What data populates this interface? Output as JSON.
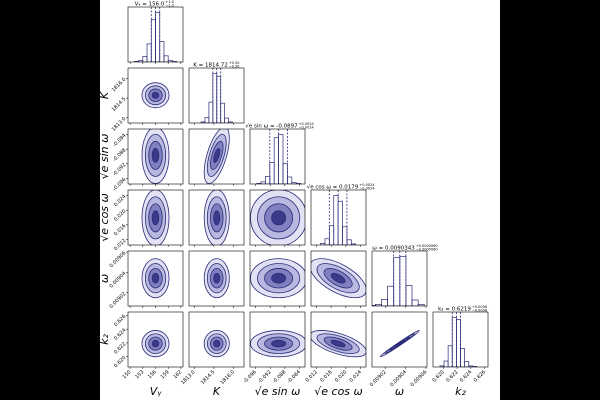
{
  "chart_data": {
    "type": "corner",
    "color": "#2b2b78",
    "parameters": [
      {
        "label": "Vᵧ",
        "title": "Vᵧ = 156.0",
        "median": 156.0,
        "err_plus": {
          "value": 1.0,
          "label": "+1.0"
        },
        "err_minus": {
          "value": 1.0,
          "label": "−1.0"
        },
        "lim": [
          149.5,
          162.5
        ],
        "ticks": [
          150,
          153,
          156,
          159,
          162
        ],
        "bins": [
          151,
          152,
          153,
          154,
          155,
          156,
          157,
          158,
          159,
          160,
          161
        ],
        "counts": [
          1,
          3,
          11,
          35,
          82,
          96,
          40,
          12,
          3,
          1
        ]
      },
      {
        "label": "K",
        "title": "K = 1814.72",
        "median": 1814.72,
        "err_plus": {
          "value": 0.3,
          "label": "+0.30"
        },
        "err_minus": {
          "value": 0.3,
          "label": "−0.30"
        },
        "lim": [
          1812.6,
          1816.8
        ],
        "ticks": [
          {
            "value": 1813,
            "label": "1813.0"
          },
          1814.5,
          {
            "value": 1816,
            "label": "1816.0"
          }
        ],
        "bins": [
          1813.22,
          1813.52,
          1813.82,
          1814.12,
          1814.42,
          1814.72,
          1815.02,
          1815.32,
          1815.62,
          1815.92,
          1816.22
        ],
        "counts": [
          0,
          2,
          10,
          38,
          90,
          85,
          36,
          9,
          2,
          0
        ]
      },
      {
        "label": "√e sin ω",
        "title": "√e sin ω = -0.0897",
        "median": -0.0897,
        "err_plus": {
          "value": 0.0024,
          "label": "+0.0024"
        },
        "err_minus": {
          "value": 0.0024,
          "label": "−0.0024"
        },
        "lim": [
          -0.0975,
          -0.0825
        ],
        "ticks": [
          -0.096,
          -0.092,
          -0.088,
          -0.084
        ],
        "bins": [
          -0.0957,
          -0.0945,
          -0.0933,
          -0.0921,
          -0.0909,
          -0.0897,
          -0.0885,
          -0.0873,
          -0.0861,
          -0.0849,
          -0.0837
        ],
        "counts": [
          1,
          4,
          14,
          40,
          86,
          92,
          38,
          13,
          3,
          1
        ]
      },
      {
        "label": "√e cos ω",
        "title": "√e cos ω = 0.0179",
        "median": 0.0179,
        "err_plus": {
          "value": 0.0024,
          "label": "+0.0024"
        },
        "err_minus": {
          "value": 0.0024,
          "label": "−0.0024"
        },
        "lim": [
          0.0105,
          0.0255
        ],
        "ticks": [
          0.012,
          0.016,
          {
            "value": 0.02,
            "label": "0.020"
          },
          0.024
        ],
        "bins": [
          0.0119,
          0.0131,
          0.0143,
          0.0155,
          0.0167,
          0.0179,
          0.0191,
          0.0203,
          0.0215,
          0.0227,
          0.0239
        ],
        "counts": [
          0,
          3,
          12,
          37,
          95,
          84,
          35,
          10,
          2,
          0
        ]
      },
      {
        "label": "ω",
        "title": "ω = 0.0090343",
        "median": 0.0090343,
        "err_plus": {
          "value": 6e-06,
          "label": "+0.0000060"
        },
        "err_minus": {
          "value": 6e-06,
          "label": "−0.0000060"
        },
        "lim": [
          0.009007,
          0.009061
        ],
        "ticks": [
          0.00902,
          0.00904,
          0.00906
        ],
        "bins": [
          0.0090043,
          0.0090103,
          0.0090163,
          0.0090223,
          0.0090283,
          0.0090343,
          0.0090403,
          0.0090463,
          0.0090523,
          0.0090583,
          0.0090643
        ],
        "counts": [
          1,
          3,
          12,
          36,
          88,
          90,
          37,
          11,
          3,
          0
        ]
      },
      {
        "label": "k₂",
        "title": "k₂ = 0.6219",
        "median": 0.6219,
        "err_plus": {
          "value": 0.0006,
          "label": "+0.0006"
        },
        "err_minus": {
          "value": 0.0006,
          "label": "−0.0006"
        },
        "lim": [
          0.6185,
          0.6265
        ],
        "ticks": [
          {
            "value": 0.62,
            "label": "0.620"
          },
          0.622,
          0.624,
          0.626
        ],
        "bins": [
          0.6189,
          0.6195,
          0.6201,
          0.6207,
          0.6213,
          0.6219,
          0.6225,
          0.6231,
          0.6237,
          0.6243,
          0.6249
        ],
        "counts": [
          0,
          2,
          11,
          39,
          91,
          87,
          34,
          10,
          2,
          1
        ]
      }
    ],
    "correlation": [
      [],
      [
        0.0
      ],
      [
        0.0,
        0.6
      ],
      [
        0.0,
        0.0,
        0.0
      ],
      [
        0.0,
        0.0,
        0.0,
        -0.6
      ],
      [
        0.0,
        0.0,
        0.0,
        -0.6,
        0.99
      ]
    ],
    "contour_levels": [
      0.5,
      1,
      1.5,
      2
    ]
  }
}
